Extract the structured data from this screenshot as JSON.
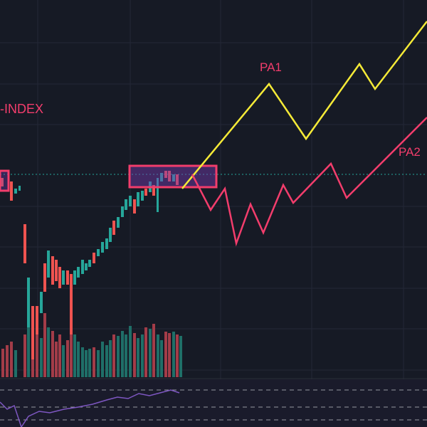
{
  "annotations": {
    "index_label": "-INDEX",
    "pa1": "PA1",
    "pa2": "PA2"
  }
}
